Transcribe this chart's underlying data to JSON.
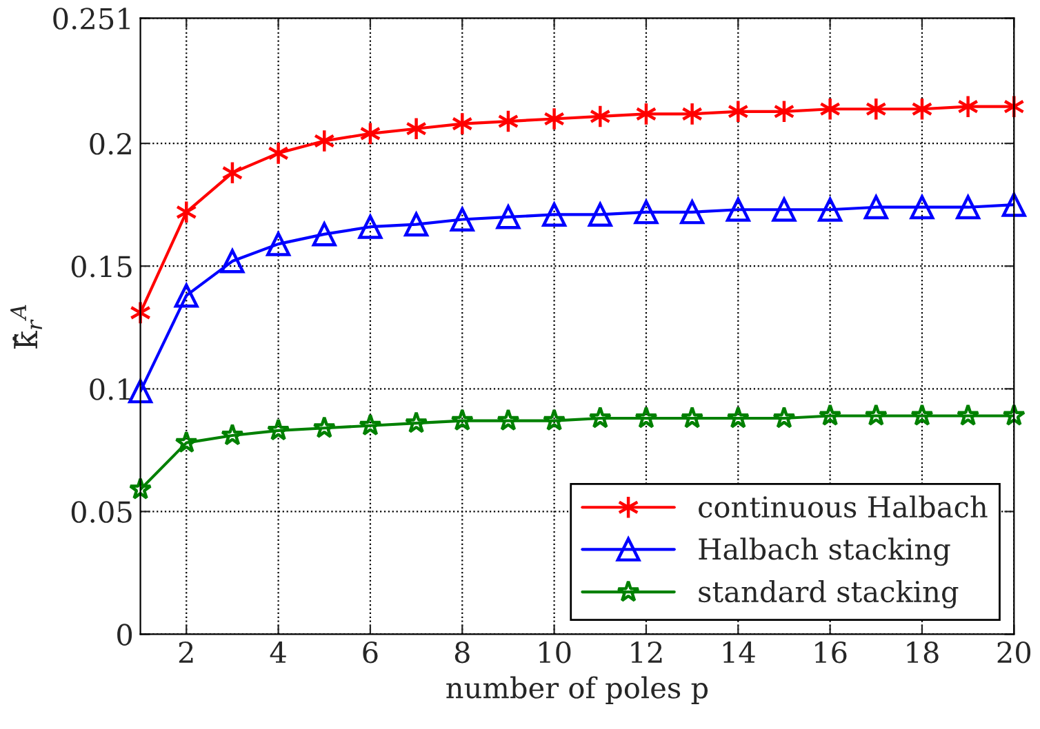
{
  "chart_data": {
    "type": "line",
    "xlabel": "number of poles p",
    "ylabel": "k̄̂$_{r}$$^{A}$",
    "x": [
      1,
      2,
      3,
      4,
      5,
      6,
      7,
      8,
      9,
      10,
      11,
      12,
      13,
      14,
      15,
      16,
      17,
      18,
      19,
      20
    ],
    "series": [
      {
        "name": "continuous Halbach",
        "color": "#ff0000",
        "marker": "cross",
        "values": [
          0.131,
          0.172,
          0.188,
          0.196,
          0.201,
          0.204,
          0.206,
          0.208,
          0.209,
          0.21,
          0.211,
          0.212,
          0.212,
          0.213,
          0.213,
          0.214,
          0.214,
          0.214,
          0.215,
          0.215
        ]
      },
      {
        "name": "Halbach stacking",
        "color": "#0000ff",
        "marker": "triangle",
        "values": [
          0.099,
          0.138,
          0.152,
          0.159,
          0.163,
          0.166,
          0.167,
          0.169,
          0.17,
          0.171,
          0.171,
          0.172,
          0.172,
          0.173,
          0.173,
          0.173,
          0.174,
          0.174,
          0.174,
          0.175
        ]
      },
      {
        "name": "standard stacking",
        "color": "#008000",
        "marker": "star",
        "values": [
          0.059,
          0.078,
          0.081,
          0.083,
          0.084,
          0.085,
          0.086,
          0.087,
          0.087,
          0.087,
          0.088,
          0.088,
          0.088,
          0.088,
          0.088,
          0.089,
          0.089,
          0.089,
          0.089,
          0.089
        ]
      }
    ],
    "xlim": [
      1,
      20
    ],
    "xticks": [
      2,
      4,
      6,
      8,
      10,
      12,
      14,
      16,
      18,
      20
    ],
    "ylim": [
      0,
      0.251
    ],
    "yticks": [
      0,
      0.05,
      0.1,
      0.15,
      0.2,
      0.251
    ],
    "grid": true,
    "legend": "bottom right",
    "line_style": "solid"
  }
}
